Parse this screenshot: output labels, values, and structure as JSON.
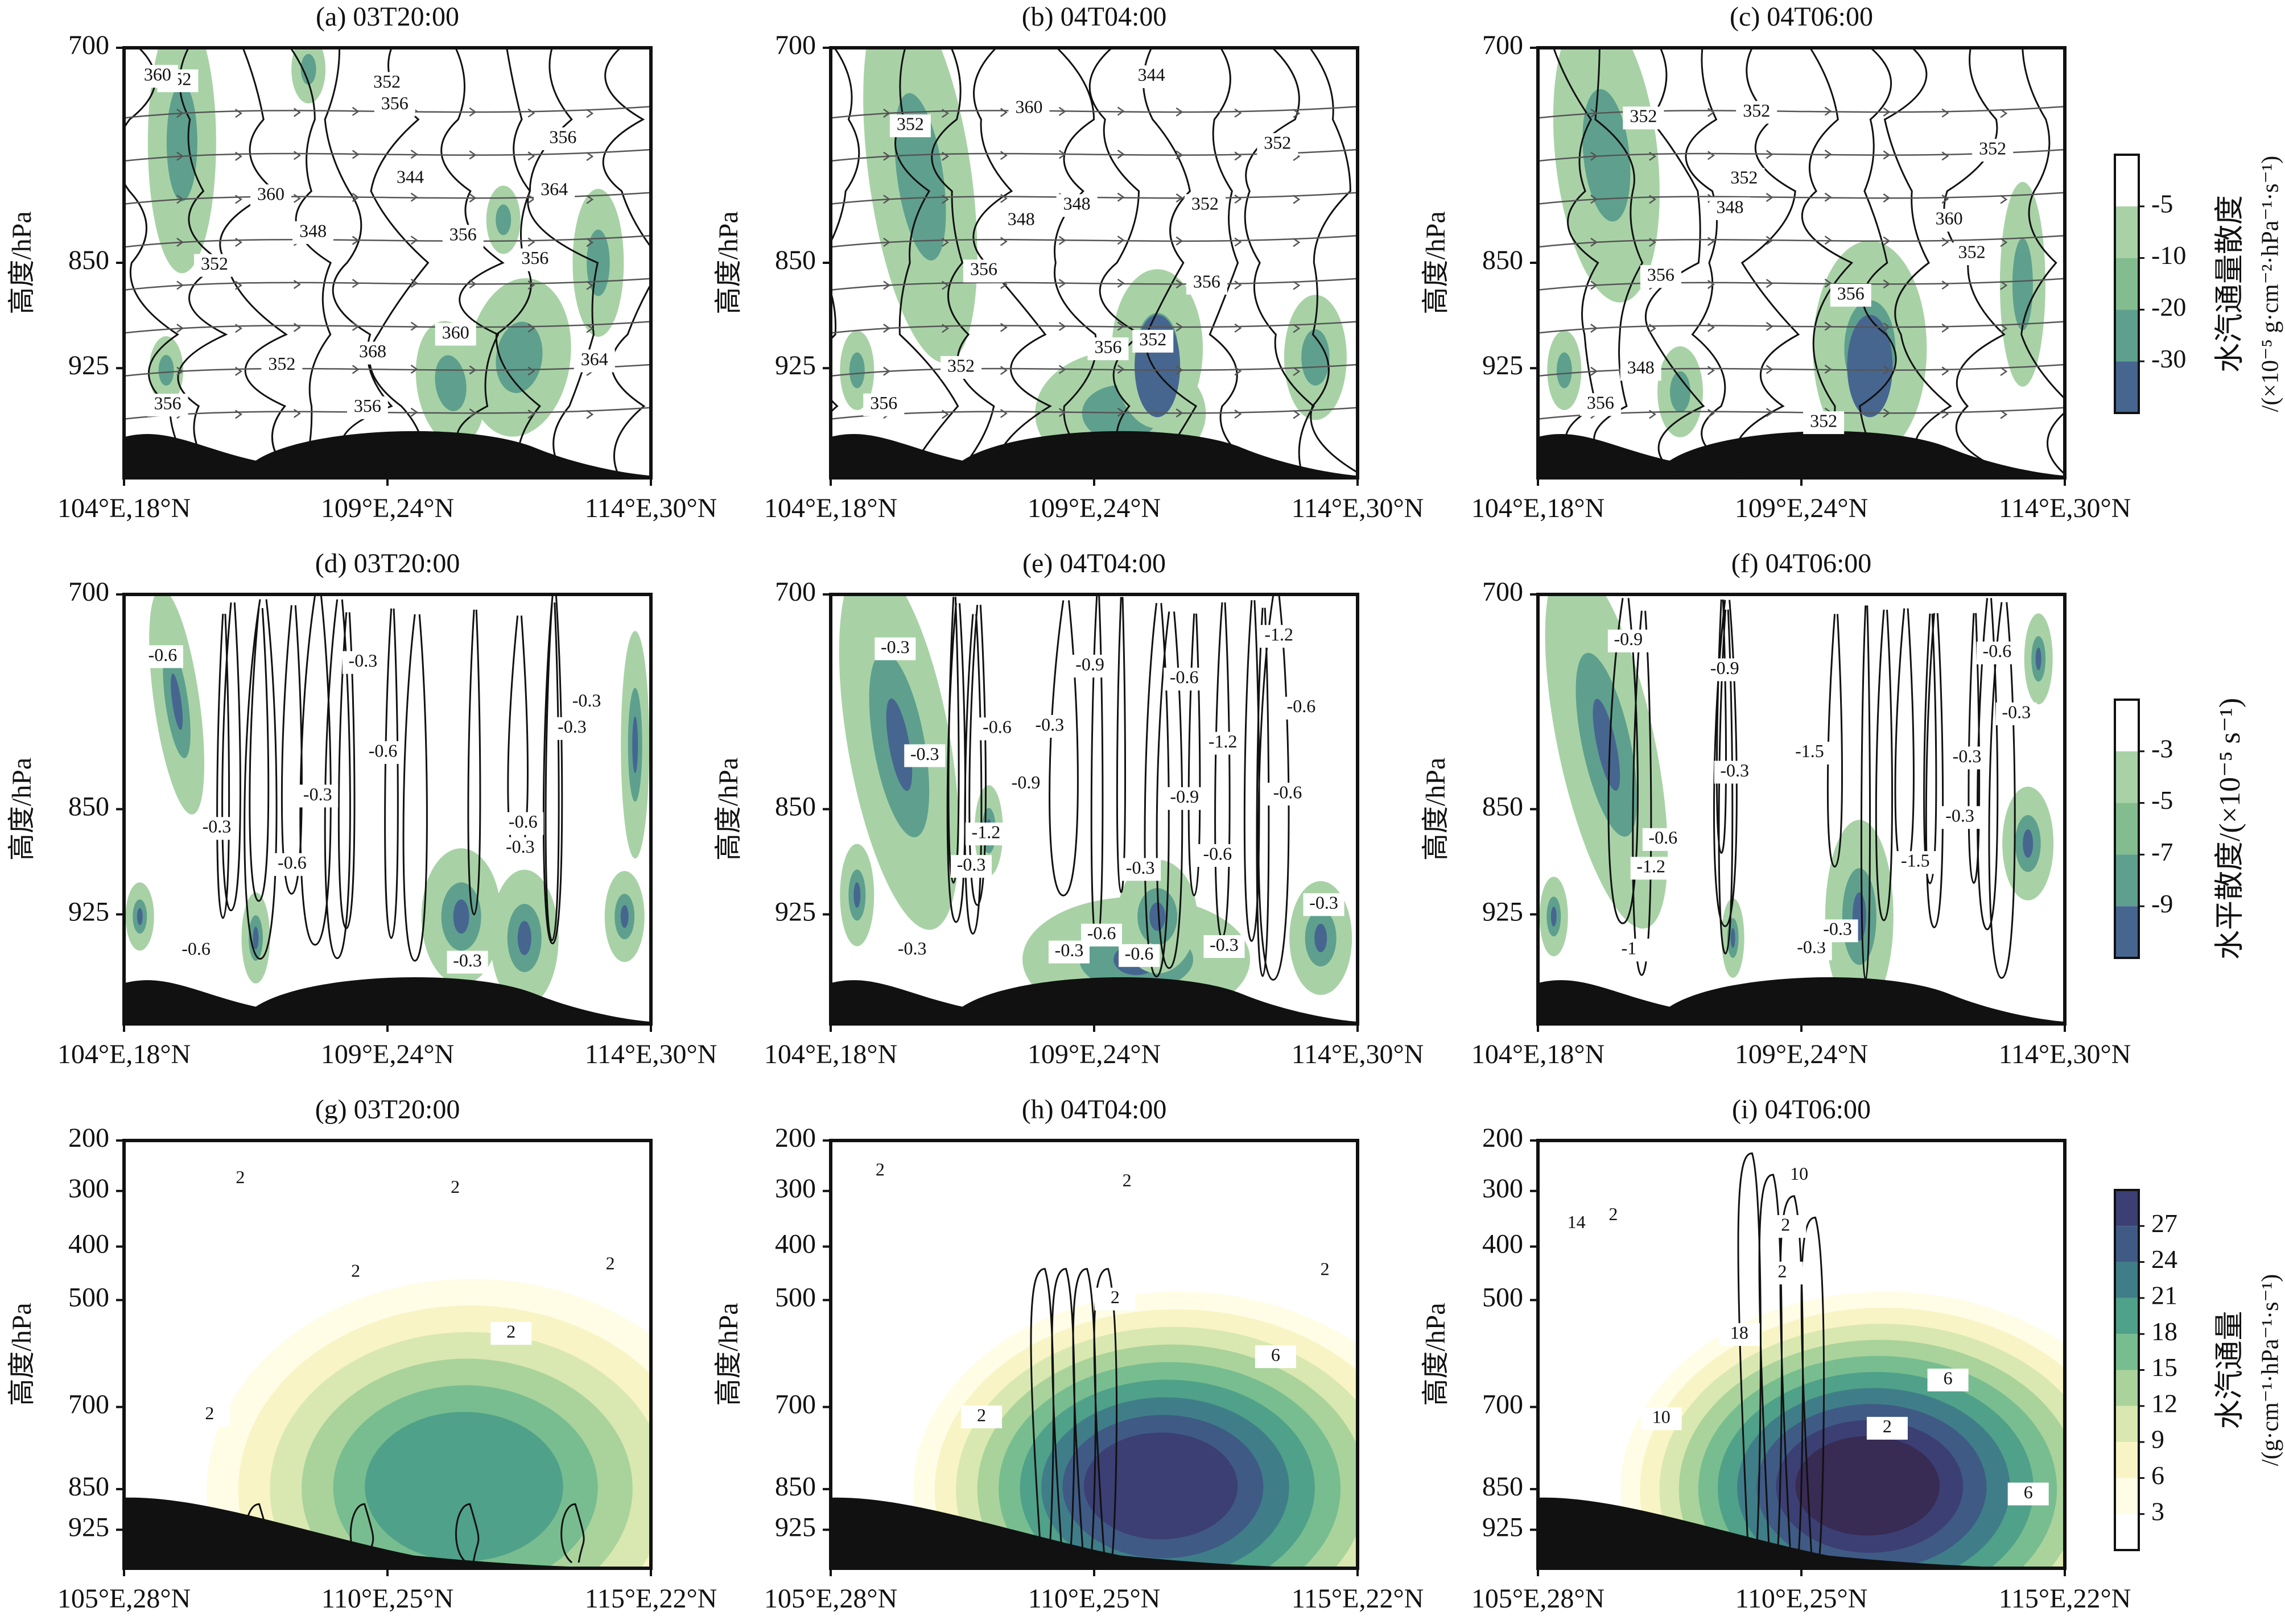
{
  "figure": {
    "rows": [
      {
        "colorbar": {
          "title": "水汽通量散度",
          "unit": "/(×10⁻⁵ g·cm⁻²·hPa⁻¹·s⁻¹)",
          "ticks": [
            "-5",
            "-10",
            "-20",
            "-30"
          ]
        },
        "contour_label_spacing": 4
      },
      {
        "colorbar": {
          "title": "水平散度/(×10⁻⁵ s⁻¹)",
          "unit": "",
          "ticks": [
            "-3",
            "-5",
            "-7",
            "-9"
          ]
        },
        "contour_label_spacing": 0.3
      },
      {
        "colorbar": {
          "title": "水汽通量",
          "unit": "/(g·cm⁻¹·hPa⁻¹·s⁻¹)",
          "ticks": [
            "3",
            "6",
            "9",
            "12",
            "15",
            "18",
            "21",
            "24",
            "27"
          ]
        },
        "contour_label_spacing": 2
      }
    ],
    "ylabel": "高度/hPa"
  },
  "chart_data": [
    {
      "panel": "a",
      "type": "heatmap",
      "title": "(a) 03T20:00",
      "ylabel": "高度/hPa",
      "yticks": [
        "700",
        "850",
        "925"
      ],
      "xticks": [
        "104°E,18°N",
        "109°E,24°N",
        "114°E,30°N"
      ],
      "fill": "水汽通量散度",
      "contours": "位温",
      "contour_labels": [
        "352",
        "344",
        "356",
        "352",
        "352",
        "356",
        "348",
        "360",
        "356",
        "356",
        "364",
        "352",
        "368",
        "360",
        "360",
        "356",
        "364",
        "356"
      ],
      "streamlines": true
    },
    {
      "panel": "b",
      "type": "heatmap",
      "title": "(b) 04T04:00",
      "ylabel": "高度/hPa",
      "yticks": [
        "700",
        "850",
        "925"
      ],
      "xticks": [
        "104°E,18°N",
        "109°E,24°N",
        "114°E,30°N"
      ],
      "fill": "水汽通量散度",
      "contours": "位温",
      "contour_labels": [
        "352",
        "348",
        "356",
        "352",
        "344",
        "352",
        "348",
        "352",
        "356",
        "360",
        "352",
        "356",
        "356"
      ],
      "streamlines": true
    },
    {
      "panel": "c",
      "type": "heatmap",
      "title": "(c) 04T06:00",
      "ylabel": "高度/hPa",
      "yticks": [
        "700",
        "850",
        "925"
      ],
      "xticks": [
        "104°E,18°N",
        "109°E,24°N",
        "114°E,30°N"
      ],
      "fill": "水汽通量散度",
      "contours": "位温",
      "contour_labels": [
        "352",
        "352",
        "352",
        "348",
        "352",
        "352",
        "348",
        "356",
        "356",
        "352",
        "360",
        "356"
      ],
      "streamlines": true
    },
    {
      "panel": "d",
      "type": "heatmap",
      "title": "(d) 03T20:00",
      "ylabel": "高度/hPa",
      "yticks": [
        "700",
        "850",
        "925"
      ],
      "xticks": [
        "104°E,18°N",
        "109°E,24°N",
        "114°E,30°N"
      ],
      "fill": "水平散度",
      "contours": "垂直速度",
      "contour_labels": [
        "-0.6",
        "-0.6",
        "-0.6",
        "-0.6",
        "-0.3",
        "-0.3",
        "-0.3",
        "-0.3",
        "-0.6",
        "-0.3",
        "-0.3",
        "-0.3"
      ]
    },
    {
      "panel": "e",
      "type": "heatmap",
      "title": "(e) 04T04:00",
      "ylabel": "高度/hPa",
      "yticks": [
        "700",
        "850",
        "925"
      ],
      "xticks": [
        "104°E,18°N",
        "109°E,24°N",
        "114°E,30°N"
      ],
      "fill": "水平散度",
      "contours": "垂直速度",
      "contour_labels": [
        "-0.3",
        "-0.3",
        "-0.6",
        "-0.3",
        "-0.6",
        "-0.6",
        "-0.9",
        "-0.6",
        "-0.3",
        "-0.9",
        "-1.2",
        "-1.2",
        "-0.6",
        "-1.2",
        "-0.6",
        "-0.9",
        "-0.3",
        "-0.3",
        "-0.6",
        "-0.3",
        "-0.3",
        "-0.3"
      ]
    },
    {
      "panel": "f",
      "type": "heatmap",
      "title": "(f) 04T06:00",
      "ylabel": "高度/hPa",
      "yticks": [
        "700",
        "850",
        "925"
      ],
      "xticks": [
        "104°E,18°N",
        "109°E,24°N",
        "114°E,30°N"
      ],
      "fill": "水平散度",
      "contours": "垂直速度",
      "contour_labels": [
        "-0.9",
        "-1.5",
        "-0.3",
        "-1.2",
        "-0.3",
        "-0.3",
        "-0.3",
        "-1.5",
        "-1",
        "-0.9",
        "-0.3",
        "-0.6",
        "-0.3",
        "-0.6"
      ]
    },
    {
      "panel": "g",
      "type": "heatmap",
      "title": "(g) 03T20:00",
      "ylabel": "高度/hPa",
      "yticks": [
        "200",
        "300",
        "400",
        "500",
        "700",
        "850",
        "925"
      ],
      "xticks": [
        "105°E,28°N",
        "110°E,25°N",
        "115°E,22°N"
      ],
      "fill": "水汽通量",
      "contours": "涡度",
      "contour_labels": [
        "2",
        "2",
        "2",
        "2",
        "2",
        "2"
      ]
    },
    {
      "panel": "h",
      "type": "heatmap",
      "title": "(h) 04T04:00",
      "ylabel": "高度/hPa",
      "yticks": [
        "200",
        "300",
        "400",
        "500",
        "700",
        "850",
        "925"
      ],
      "xticks": [
        "105°E,28°N",
        "110°E,25°N",
        "115°E,22°N"
      ],
      "fill": "水汽通量",
      "contours": "涡度",
      "contour_labels": [
        "2",
        "2",
        "6",
        "2",
        "2",
        "2"
      ]
    },
    {
      "panel": "i",
      "type": "heatmap",
      "title": "(i) 04T06:00",
      "ylabel": "高度/hPa",
      "yticks": [
        "200",
        "300",
        "400",
        "500",
        "700",
        "850",
        "925"
      ],
      "xticks": [
        "105°E,28°N",
        "110°E,25°N",
        "115°E,22°N"
      ],
      "fill": "水汽通量",
      "contours": "涡度",
      "contour_labels": [
        "2",
        "2",
        "6",
        "10",
        "10",
        "14",
        "18",
        "2",
        "6",
        "2"
      ]
    }
  ]
}
